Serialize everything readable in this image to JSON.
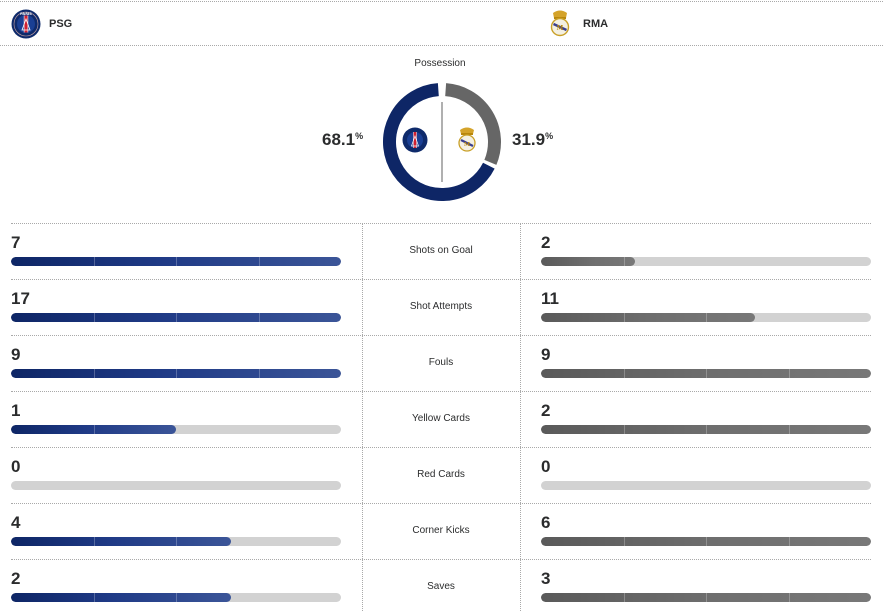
{
  "teams": {
    "home": {
      "name": "PSG",
      "logo_icon": "psg-crest",
      "color": "#0e2666"
    },
    "away": {
      "name": "RMA",
      "logo_icon": "real-madrid-crest",
      "color": "#666666"
    }
  },
  "possession": {
    "title": "Possession",
    "home_value": "68.1",
    "away_value": "31.9",
    "unit": "%",
    "home_fraction": 0.681,
    "away_fraction": 0.319
  },
  "stats": [
    {
      "label": "Shots on Goal",
      "home": "7",
      "away": "2",
      "home_fill": 1.0,
      "away_fill": 0.286
    },
    {
      "label": "Shot Attempts",
      "home": "17",
      "away": "11",
      "home_fill": 1.0,
      "away_fill": 0.647
    },
    {
      "label": "Fouls",
      "home": "9",
      "away": "9",
      "home_fill": 1.0,
      "away_fill": 1.0
    },
    {
      "label": "Yellow Cards",
      "home": "1",
      "away": "2",
      "home_fill": 0.5,
      "away_fill": 1.0
    },
    {
      "label": "Red Cards",
      "home": "0",
      "away": "0",
      "home_fill": 0,
      "away_fill": 0
    },
    {
      "label": "Corner Kicks",
      "home": "4",
      "away": "6",
      "home_fill": 0.667,
      "away_fill": 1.0
    },
    {
      "label": "Saves",
      "home": "2",
      "away": "3",
      "home_fill": 0.667,
      "away_fill": 1.0
    }
  ]
}
